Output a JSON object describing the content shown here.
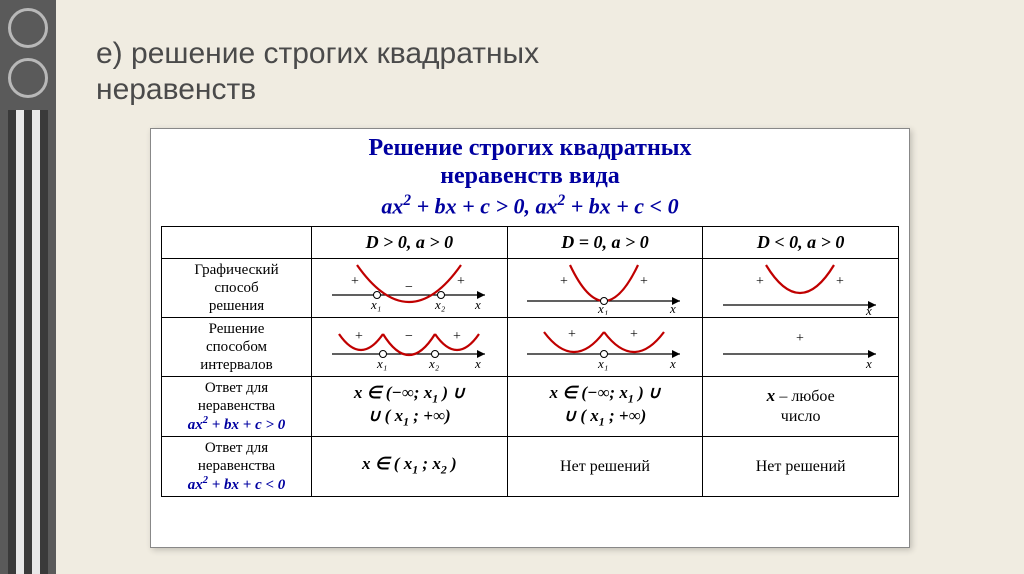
{
  "heading": "е) решение строгих квадратных\nнеравенств",
  "card": {
    "title": "Решение строгих квадратных\nнеравенств вида",
    "formula_html": "ax<sup>2</sup> + bx + c &gt; 0, ax<sup>2</sup> + bx + c &lt; 0"
  },
  "headers": [
    "D > 0, a > 0",
    "D = 0, a > 0",
    "D < 0, a > 0"
  ],
  "rows": [
    {
      "label": "Графический\nспособ\nрешения"
    },
    {
      "label": "Решение\nспособом\nинтервалов"
    },
    {
      "label_html": "Ответ для\nнеравенства\n<span class=\"blue\">ax<sup>2</sup> + bx + c &gt; 0</span>",
      "cells_html": [
        "<span class='x'>x</span> &isin; (&minus;&infin;; <span class='x'>x<sub>1</sub></span> ) &cup;<br>&cup; ( <span class='x'>x<sub>1</sub></span> ; +&infin;)",
        "<span class='x'>x</span> &isin; (&minus;&infin;; <span class='x'>x<sub>1</sub></span> ) &cup;<br>&cup; ( <span class='x'>x<sub>1</sub></span> ; +&infin;)",
        "<span class='x'>x</span> <span class='plain'>– любое<br>число</span>"
      ]
    },
    {
      "label_html": "Ответ для\nнеравенства\n<span class=\"blue\">ax<sup>2</sup> + bx + c &lt; 0</span>",
      "cells_html": [
        "<span class='x'>x</span> &isin; ( <span class='x'>x<sub>1</sub></span> ; <span class='x'>x<sub>2</sub></span> )",
        "<span class='plain'>Нет решений</span>",
        "<span class='plain'>Нет решений</span>"
      ]
    }
  ],
  "colors": {
    "curve": "#c00000",
    "headings": "#0000a0",
    "bg": "#f0ece1"
  }
}
